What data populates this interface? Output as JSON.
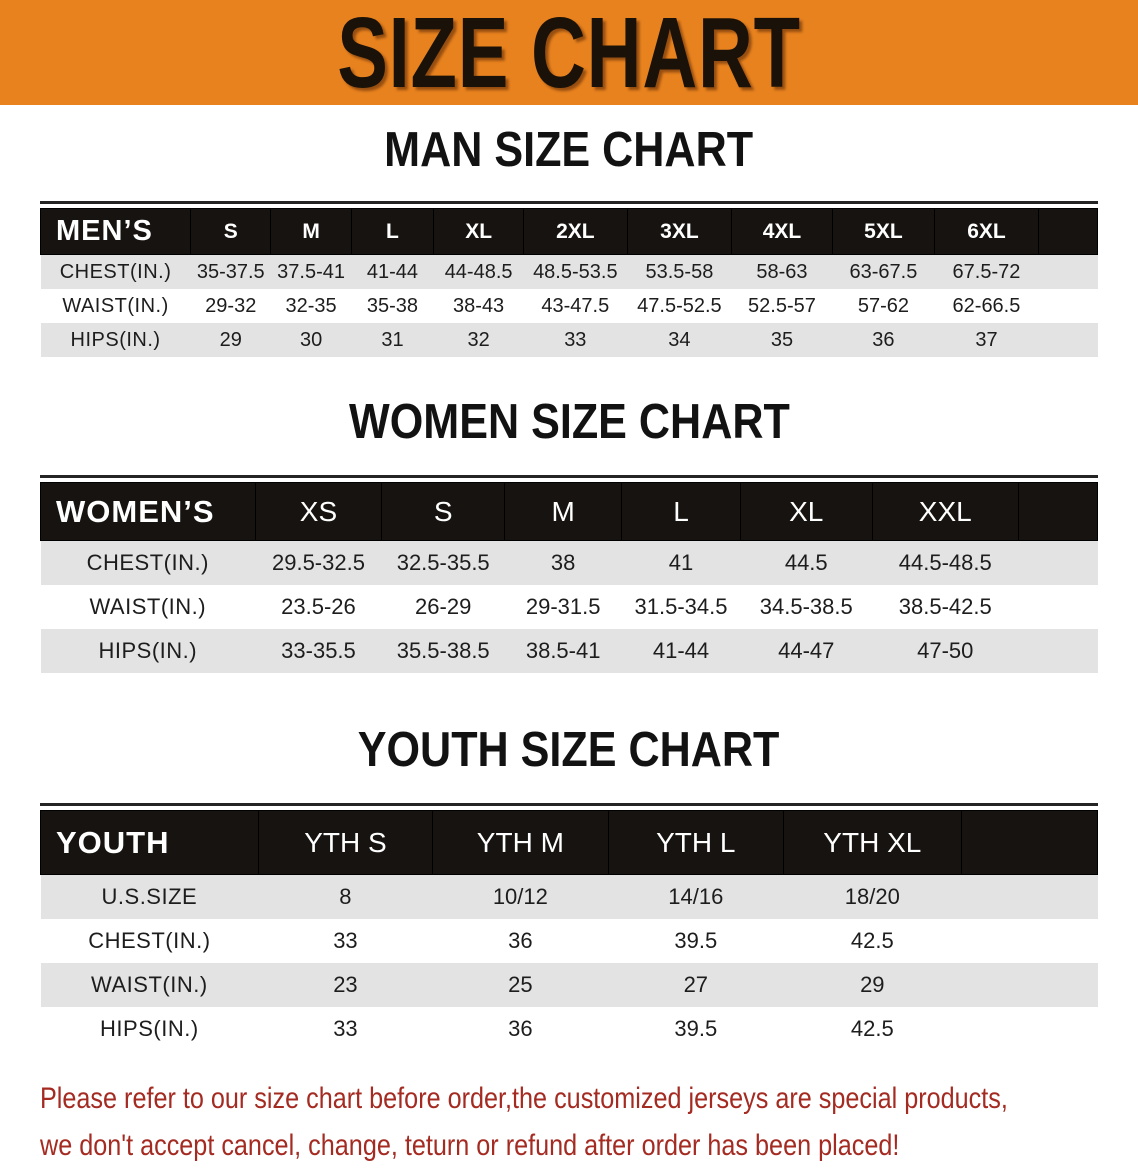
{
  "banner": {
    "title": "SIZE CHART"
  },
  "sections": [
    {
      "heading": "MAN SIZE CHART",
      "table": {
        "label": "MEN’S",
        "sizes": [
          "S",
          "M",
          "L",
          "XL",
          "2XL",
          "3XL",
          "4XL",
          "5XL",
          "6XL"
        ],
        "rows": [
          {
            "label": "CHEST(IN.)",
            "values": [
              "35-37.5",
              "37.5-41",
              "41-44",
              "44-48.5",
              "48.5-53.5",
              "53.5-58",
              "58-63",
              "63-67.5",
              "67.5-72"
            ]
          },
          {
            "label": "WAIST(IN.)",
            "values": [
              "29-32",
              "32-35",
              "35-38",
              "38-43",
              "43-47.5",
              "47.5-52.5",
              "52.5-57",
              "57-62",
              "62-66.5"
            ]
          },
          {
            "label": "HIPS(IN.)",
            "values": [
              "29",
              "30",
              "31",
              "32",
              "33",
              "34",
              "35",
              "36",
              "37"
            ]
          }
        ]
      }
    },
    {
      "heading": "WOMEN SIZE CHART",
      "table": {
        "label": "WOMEN’S",
        "sizes": [
          "XS",
          "S",
          "M",
          "L",
          "XL",
          "XXL"
        ],
        "rows": [
          {
            "label": "CHEST(IN.)",
            "values": [
              "29.5-32.5",
              "32.5-35.5",
              "38",
              "41",
              "44.5",
              "44.5-48.5"
            ]
          },
          {
            "label": "WAIST(IN.)",
            "values": [
              "23.5-26",
              "26-29",
              "29-31.5",
              "31.5-34.5",
              "34.5-38.5",
              "38.5-42.5"
            ]
          },
          {
            "label": "HIPS(IN.)",
            "values": [
              "33-35.5",
              "35.5-38.5",
              "38.5-41",
              "41-44",
              "44-47",
              "47-50"
            ]
          }
        ]
      }
    },
    {
      "heading": "YOUTH SIZE CHART",
      "table": {
        "label": "YOUTH",
        "sizes": [
          "YTH S",
          "YTH M",
          "YTH L",
          "YTH XL"
        ],
        "rows": [
          {
            "label": "U.S.SIZE",
            "values": [
              "8",
              "10/12",
              "14/16",
              "18/20"
            ]
          },
          {
            "label": "CHEST(IN.)",
            "values": [
              "33",
              "36",
              "39.5",
              "42.5"
            ]
          },
          {
            "label": "WAIST(IN.)",
            "values": [
              "23",
              "25",
              "27",
              "29"
            ]
          },
          {
            "label": "HIPS(IN.)",
            "values": [
              "33",
              "36",
              "39.5",
              "42.5"
            ]
          }
        ]
      }
    }
  ],
  "disclaimer": {
    "line1": "Please refer to our size chart before order,the customized jerseys are special products,",
    "line2": "we don't accept cancel, change, teturn or refund after order has been placed!"
  },
  "colors": {
    "banner_bg": "#E8821E",
    "title_text": "#1A1208",
    "header_bar_bg": "#171310",
    "row_stripe": "#E3E3E3",
    "disclaimer_text": "#A42B22"
  }
}
